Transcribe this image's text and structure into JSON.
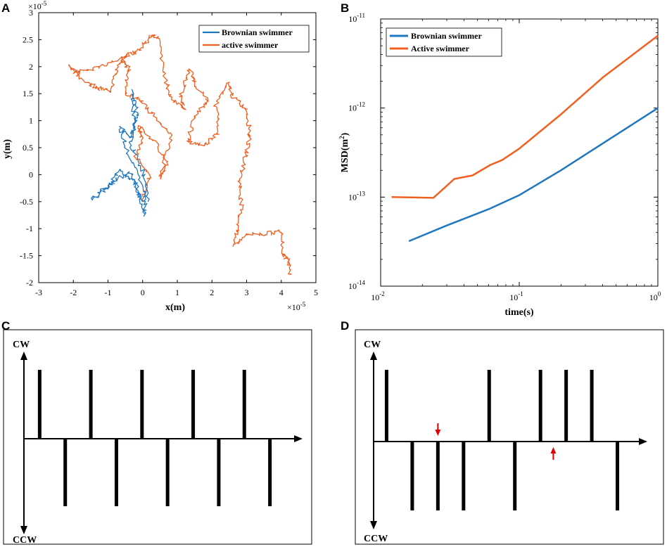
{
  "panels": {
    "A": {
      "letter": "A"
    },
    "B": {
      "letter": "B"
    },
    "C": {
      "letter": "C"
    },
    "D": {
      "letter": "D"
    }
  },
  "colors": {
    "brownian": "#1f77c0",
    "active": "#f06020",
    "arrow": "#e00000",
    "ink": "#000000"
  },
  "chart_data": [
    {
      "id": "A",
      "type": "line",
      "title": "",
      "xlabel": "x(m)",
      "ylabel": "y(m)",
      "xlim": [
        -3,
        5
      ],
      "ylim": [
        -2,
        3
      ],
      "scale_exponent": "×10",
      "scale_power": "-5",
      "xticks": [
        "-3",
        "-2",
        "-1",
        "0",
        "1",
        "2",
        "3",
        "4",
        "5"
      ],
      "yticks": [
        "-2",
        "-1.5",
        "-1",
        "-0.5",
        "0",
        "0.5",
        "1",
        "1.5",
        "2",
        "2.5",
        "3"
      ],
      "legend_position": "top-right",
      "series": [
        {
          "name": "Brownian swimmer",
          "path": [
            [
              0,
              -0.5
            ],
            [
              -0.3,
              -0.1
            ],
            [
              -0.7,
              0.1
            ],
            [
              -1.0,
              -0.25
            ],
            [
              -1.45,
              -0.45
            ],
            [
              -0.9,
              -0.15
            ],
            [
              -0.35,
              0.05
            ],
            [
              -0.1,
              -0.35
            ],
            [
              0.05,
              -0.75
            ],
            [
              0.1,
              -0.35
            ],
            [
              -0.4,
              0.35
            ],
            [
              -0.65,
              0.9
            ],
            [
              -0.35,
              0.7
            ],
            [
              -0.15,
              1.1
            ],
            [
              -0.3,
              1.55
            ],
            [
              -0.25,
              1.0
            ],
            [
              -0.35,
              0.55
            ],
            [
              0,
              0.1
            ],
            [
              0.15,
              -0.5
            ]
          ]
        },
        {
          "name": "active swimmer",
          "path": [
            [
              0,
              -0.5
            ],
            [
              0.2,
              0.0
            ],
            [
              -0.2,
              0.35
            ],
            [
              0.0,
              0.65
            ],
            [
              -0.1,
              0.9
            ],
            [
              0.4,
              0.6
            ],
            [
              0.7,
              0.2
            ],
            [
              0.5,
              -0.05
            ],
            [
              0.85,
              0.75
            ],
            [
              0.3,
              1.1
            ],
            [
              -0.1,
              1.4
            ],
            [
              -0.5,
              1.5
            ],
            [
              -0.4,
              1.95
            ],
            [
              -0.6,
              2.15
            ],
            [
              -1.2,
              2.0
            ],
            [
              -1.9,
              1.9
            ],
            [
              -2.1,
              2.0
            ],
            [
              -1.6,
              1.7
            ],
            [
              -1.3,
              1.6
            ],
            [
              -0.9,
              1.55
            ],
            [
              -0.75,
              1.95
            ],
            [
              -0.5,
              2.2
            ],
            [
              -0.1,
              2.3
            ],
            [
              0.2,
              2.55
            ],
            [
              0.45,
              2.55
            ],
            [
              0.6,
              1.9
            ],
            [
              0.8,
              1.45
            ],
            [
              1.2,
              1.2
            ],
            [
              1.1,
              1.45
            ],
            [
              1.35,
              1.95
            ],
            [
              1.55,
              1.65
            ],
            [
              1.9,
              1.35
            ],
            [
              1.5,
              1.1
            ],
            [
              1.3,
              0.6
            ],
            [
              1.8,
              0.55
            ],
            [
              2.2,
              0.8
            ],
            [
              2.1,
              1.3
            ],
            [
              2.45,
              1.7
            ],
            [
              2.6,
              1.45
            ],
            [
              3.0,
              1.2
            ],
            [
              3.1,
              0.8
            ],
            [
              3.0,
              0.4
            ],
            [
              2.8,
              -0.1
            ],
            [
              2.85,
              -0.55
            ],
            [
              2.75,
              -0.95
            ],
            [
              2.65,
              -1.3
            ],
            [
              3.0,
              -1.1
            ],
            [
              3.5,
              -1.1
            ],
            [
              4.0,
              -1.05
            ],
            [
              4.05,
              -1.45
            ],
            [
              4.2,
              -1.6
            ],
            [
              4.25,
              -1.85
            ]
          ]
        }
      ]
    },
    {
      "id": "B",
      "type": "line",
      "title": "",
      "xlabel": "time(s)",
      "ylabel": "MSD(m",
      "ylabel_sup": "2",
      "ylabel_tail": ")",
      "xscale": "log",
      "yscale": "log",
      "xlim": [
        0.01,
        1
      ],
      "ylim": [
        1e-14,
        1e-11
      ],
      "xtick_base": "10",
      "xtick_powers": [
        "-2",
        "-1",
        "0"
      ],
      "ytick_base": "10",
      "ytick_powers": [
        "-14",
        "-13",
        "-12",
        "-11"
      ],
      "legend_position": "top-left",
      "series": [
        {
          "name": "Brownian swimmer",
          "points": [
            [
              0.016,
              3.2e-14
            ],
            [
              0.03,
              4.8e-14
            ],
            [
              0.06,
              7.3e-14
            ],
            [
              0.1,
              1.05e-13
            ],
            [
              0.2,
              2e-13
            ],
            [
              0.4,
              4e-13
            ],
            [
              1.0,
              1e-12
            ]
          ]
        },
        {
          "name": "Active swimmer",
          "points": [
            [
              0.012,
              1e-13
            ],
            [
              0.024,
              9.8e-14
            ],
            [
              0.034,
              1.6e-13
            ],
            [
              0.046,
              1.75e-13
            ],
            [
              0.062,
              2.3e-13
            ],
            [
              0.075,
              2.6e-13
            ],
            [
              0.1,
              3.5e-13
            ],
            [
              0.2,
              8.5e-13
            ],
            [
              0.4,
              2.2e-12
            ],
            [
              1.0,
              6.5e-12
            ]
          ]
        }
      ]
    }
  ],
  "diagram_c": {
    "top_label": "CW",
    "bottom_label": "CCW",
    "up_pulses": [
      1,
      3,
      5,
      7,
      9
    ],
    "down_pulses": [
      2,
      4,
      6,
      8,
      10
    ],
    "slots": 11
  },
  "diagram_d": {
    "top_label": "CW",
    "bottom_label": "CCW",
    "up_pulses": [
      1,
      5,
      7,
      8,
      9
    ],
    "down_pulses": [
      2,
      3,
      4,
      6,
      10
    ],
    "slots": 11,
    "markers": [
      {
        "slot": 3,
        "direction": "down"
      },
      {
        "slot": 7.5,
        "direction": "up"
      }
    ]
  }
}
